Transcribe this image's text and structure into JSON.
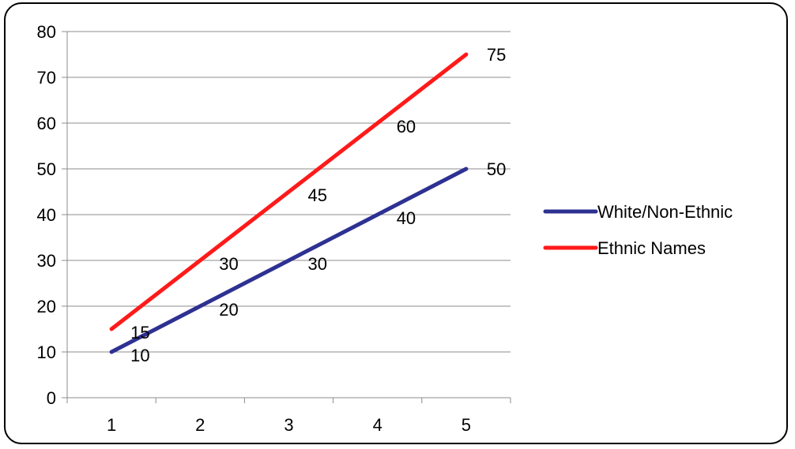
{
  "chart_data": {
    "type": "line",
    "x": [
      1,
      2,
      3,
      4,
      5
    ],
    "xticks": [
      "1",
      "2",
      "3",
      "4",
      "5"
    ],
    "yticks": [
      "0",
      "10",
      "20",
      "30",
      "40",
      "50",
      "60",
      "70",
      "80"
    ],
    "ylim": [
      0,
      80
    ],
    "grid": "horizontal",
    "legend_position": "right",
    "series": [
      {
        "name": "White/Non-Ethnic",
        "color": "#2e3192",
        "values": [
          10,
          20,
          30,
          40,
          50
        ],
        "labels": [
          "10",
          "20",
          "30",
          "40",
          "50"
        ]
      },
      {
        "name": "Ethnic Names",
        "color": "#ff1a1a",
        "values": [
          15,
          30,
          45,
          60,
          75
        ],
        "labels": [
          "15",
          "30",
          "45",
          "60",
          "75"
        ]
      }
    ]
  }
}
